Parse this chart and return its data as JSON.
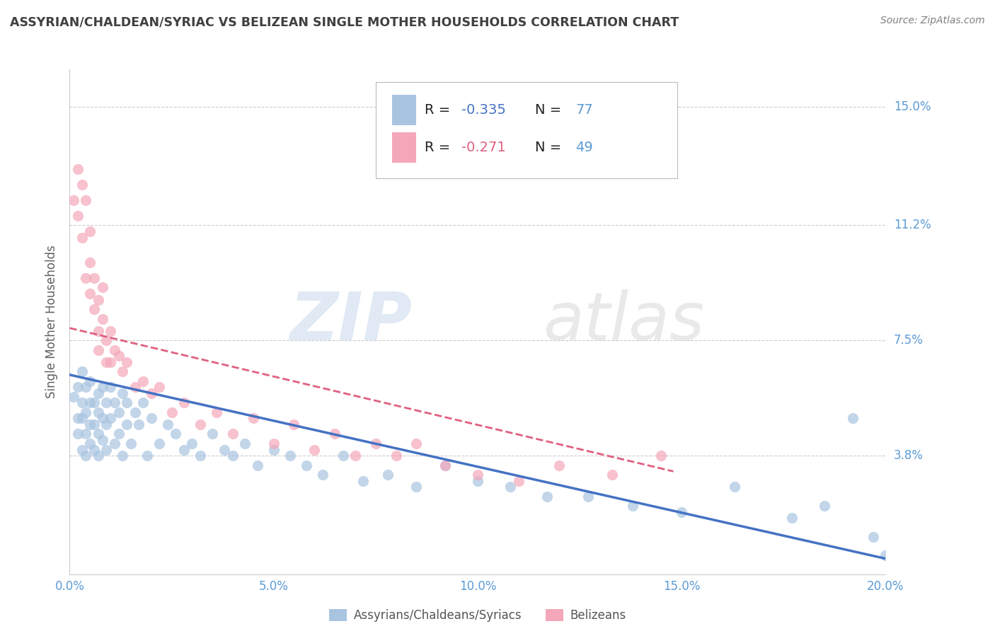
{
  "title": "ASSYRIAN/CHALDEAN/SYRIAC VS BELIZEAN SINGLE MOTHER HOUSEHOLDS CORRELATION CHART",
  "source": "Source: ZipAtlas.com",
  "ylabel": "Single Mother Households",
  "xmin": 0.0,
  "xmax": 0.2,
  "ymin": 0.0,
  "ymax": 0.162,
  "yticks": [
    0.0,
    0.038,
    0.075,
    0.112,
    0.15
  ],
  "ytick_labels": [
    "",
    "3.8%",
    "7.5%",
    "11.2%",
    "15.0%"
  ],
  "xtick_labels": [
    "0.0%",
    "5.0%",
    "10.0%",
    "15.0%",
    "20.0%"
  ],
  "xticks": [
    0.0,
    0.05,
    0.1,
    0.15,
    0.2
  ],
  "blue_color": "#a8c4e0",
  "blue_line_color": "#4472c4",
  "pink_color": "#f4a7b9",
  "pink_line_color": "#e06080",
  "label1": "Assyrians/Chaldeans/Syriacs",
  "label2": "Belizeans",
  "watermark_zip": "ZIP",
  "watermark_atlas": "atlas",
  "R1": "-0.335",
  "N1": "77",
  "R2": "-0.271",
  "N2": "49",
  "blue_trend_x": [
    0.0,
    0.2
  ],
  "blue_trend_y": [
    0.064,
    0.005
  ],
  "pink_trend_x": [
    0.0,
    0.148
  ],
  "pink_trend_y": [
    0.079,
    0.033
  ],
  "blue_x": [
    0.001,
    0.002,
    0.002,
    0.002,
    0.003,
    0.003,
    0.003,
    0.003,
    0.004,
    0.004,
    0.004,
    0.004,
    0.005,
    0.005,
    0.005,
    0.005,
    0.006,
    0.006,
    0.006,
    0.007,
    0.007,
    0.007,
    0.007,
    0.008,
    0.008,
    0.008,
    0.009,
    0.009,
    0.009,
    0.01,
    0.01,
    0.011,
    0.011,
    0.012,
    0.012,
    0.013,
    0.013,
    0.014,
    0.014,
    0.015,
    0.016,
    0.017,
    0.018,
    0.019,
    0.02,
    0.022,
    0.024,
    0.026,
    0.028,
    0.03,
    0.032,
    0.035,
    0.038,
    0.04,
    0.043,
    0.046,
    0.05,
    0.054,
    0.058,
    0.062,
    0.067,
    0.072,
    0.078,
    0.085,
    0.092,
    0.1,
    0.108,
    0.117,
    0.127,
    0.138,
    0.15,
    0.163,
    0.177,
    0.185,
    0.192,
    0.197,
    0.2
  ],
  "blue_y": [
    0.057,
    0.05,
    0.06,
    0.045,
    0.055,
    0.065,
    0.05,
    0.04,
    0.06,
    0.052,
    0.045,
    0.038,
    0.055,
    0.048,
    0.062,
    0.042,
    0.055,
    0.048,
    0.04,
    0.052,
    0.058,
    0.045,
    0.038,
    0.06,
    0.05,
    0.043,
    0.048,
    0.055,
    0.04,
    0.06,
    0.05,
    0.055,
    0.042,
    0.052,
    0.045,
    0.058,
    0.038,
    0.048,
    0.055,
    0.042,
    0.052,
    0.048,
    0.055,
    0.038,
    0.05,
    0.042,
    0.048,
    0.045,
    0.04,
    0.042,
    0.038,
    0.045,
    0.04,
    0.038,
    0.042,
    0.035,
    0.04,
    0.038,
    0.035,
    0.032,
    0.038,
    0.03,
    0.032,
    0.028,
    0.035,
    0.03,
    0.028,
    0.025,
    0.025,
    0.022,
    0.02,
    0.028,
    0.018,
    0.022,
    0.05,
    0.012,
    0.006
  ],
  "pink_x": [
    0.001,
    0.002,
    0.002,
    0.003,
    0.003,
    0.004,
    0.004,
    0.005,
    0.005,
    0.005,
    0.006,
    0.006,
    0.007,
    0.007,
    0.007,
    0.008,
    0.008,
    0.009,
    0.009,
    0.01,
    0.01,
    0.011,
    0.012,
    0.013,
    0.014,
    0.016,
    0.018,
    0.02,
    0.022,
    0.025,
    0.028,
    0.032,
    0.036,
    0.04,
    0.045,
    0.05,
    0.055,
    0.06,
    0.065,
    0.07,
    0.075,
    0.08,
    0.085,
    0.092,
    0.1,
    0.11,
    0.12,
    0.133,
    0.145
  ],
  "pink_y": [
    0.12,
    0.13,
    0.115,
    0.125,
    0.108,
    0.12,
    0.095,
    0.11,
    0.1,
    0.09,
    0.095,
    0.085,
    0.088,
    0.078,
    0.072,
    0.082,
    0.092,
    0.075,
    0.068,
    0.078,
    0.068,
    0.072,
    0.07,
    0.065,
    0.068,
    0.06,
    0.062,
    0.058,
    0.06,
    0.052,
    0.055,
    0.048,
    0.052,
    0.045,
    0.05,
    0.042,
    0.048,
    0.04,
    0.045,
    0.038,
    0.042,
    0.038,
    0.042,
    0.035,
    0.032,
    0.03,
    0.035,
    0.032,
    0.038
  ],
  "background": "#ffffff",
  "grid_color": "#cccccc",
  "tick_color": "#5b9bd5",
  "title_color": "#404040",
  "source_color": "#808080"
}
